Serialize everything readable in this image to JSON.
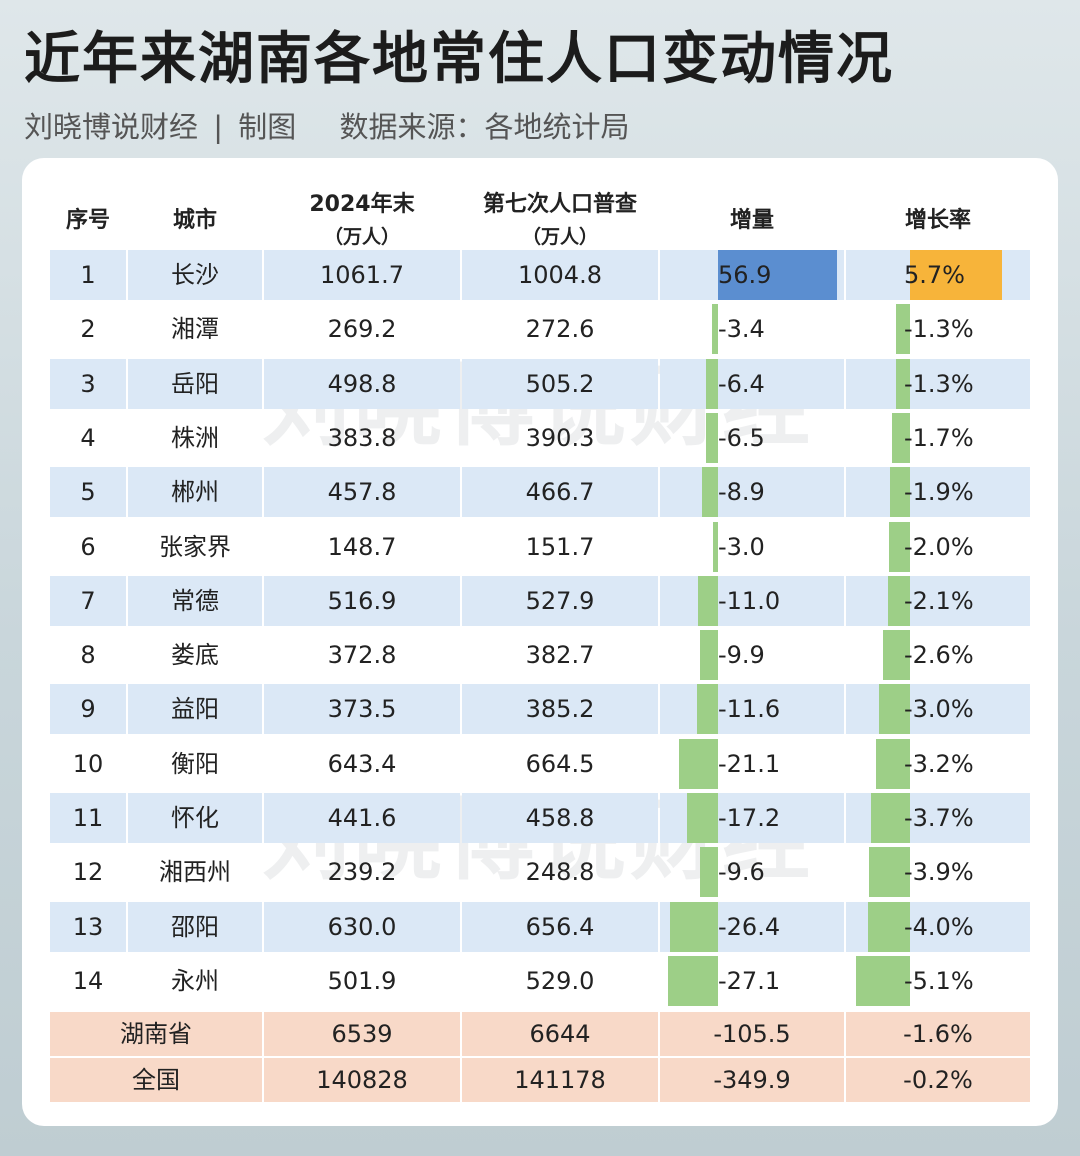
{
  "header": {
    "title": "近年来湖南各地常住人口变动情况",
    "author": "刘晓博说财经",
    "separator": "|",
    "made_by": "制图",
    "source": "数据来源：各地统计局"
  },
  "watermark": "刘晓博说财经",
  "colors": {
    "positive_increment": "#5b8ed0",
    "positive_rate": "#f7b43a",
    "negative": "#9dcf87",
    "row_blue": "#dbe8f6",
    "row_total": "#f8d9c8"
  },
  "chart_data": {
    "type": "table",
    "columns": [
      {
        "line1": "序号",
        "line2": ""
      },
      {
        "line1": "城市",
        "line2": ""
      },
      {
        "line1": "2024年末",
        "line2": "（万人）"
      },
      {
        "line1": "第七次人口普查",
        "line2": "（万人）"
      },
      {
        "line1": "增量",
        "line2": ""
      },
      {
        "line1": "增长率",
        "line2": ""
      }
    ],
    "rows": [
      {
        "no": "1",
        "city": "长沙",
        "pop2024": "1061.7",
        "census7": "1004.8",
        "increment": "56.9",
        "rate": "5.7%",
        "inc_value": 56.9,
        "rate_value": 5.7
      },
      {
        "no": "2",
        "city": "湘潭",
        "pop2024": "269.2",
        "census7": "272.6",
        "increment": "-3.4",
        "rate": "-1.3%",
        "inc_value": -3.4,
        "rate_value": -1.3
      },
      {
        "no": "3",
        "city": "岳阳",
        "pop2024": "498.8",
        "census7": "505.2",
        "increment": "-6.4",
        "rate": "-1.3%",
        "inc_value": -6.4,
        "rate_value": -1.3
      },
      {
        "no": "4",
        "city": "株洲",
        "pop2024": "383.8",
        "census7": "390.3",
        "increment": "-6.5",
        "rate": "-1.7%",
        "inc_value": -6.5,
        "rate_value": -1.7
      },
      {
        "no": "5",
        "city": "郴州",
        "pop2024": "457.8",
        "census7": "466.7",
        "increment": "-8.9",
        "rate": "-1.9%",
        "inc_value": -8.9,
        "rate_value": -1.9
      },
      {
        "no": "6",
        "city": "张家界",
        "pop2024": "148.7",
        "census7": "151.7",
        "increment": "-3.0",
        "rate": "-2.0%",
        "inc_value": -3.0,
        "rate_value": -2.0
      },
      {
        "no": "7",
        "city": "常德",
        "pop2024": "516.9",
        "census7": "527.9",
        "increment": "-11.0",
        "rate": "-2.1%",
        "inc_value": -11.0,
        "rate_value": -2.1
      },
      {
        "no": "8",
        "city": "娄底",
        "pop2024": "372.8",
        "census7": "382.7",
        "increment": "-9.9",
        "rate": "-2.6%",
        "inc_value": -9.9,
        "rate_value": -2.6
      },
      {
        "no": "9",
        "city": "益阳",
        "pop2024": "373.5",
        "census7": "385.2",
        "increment": "-11.6",
        "rate": "-3.0%",
        "inc_value": -11.6,
        "rate_value": -3.0
      },
      {
        "no": "10",
        "city": "衡阳",
        "pop2024": "643.4",
        "census7": "664.5",
        "increment": "-21.1",
        "rate": "-3.2%",
        "inc_value": -21.1,
        "rate_value": -3.2
      },
      {
        "no": "11",
        "city": "怀化",
        "pop2024": "441.6",
        "census7": "458.8",
        "increment": "-17.2",
        "rate": "-3.7%",
        "inc_value": -17.2,
        "rate_value": -3.7
      },
      {
        "no": "12",
        "city": "湘西州",
        "pop2024": "239.2",
        "census7": "248.8",
        "increment": "-9.6",
        "rate": "-3.9%",
        "inc_value": -9.6,
        "rate_value": -3.9
      },
      {
        "no": "13",
        "city": "邵阳",
        "pop2024": "630.0",
        "census7": "656.4",
        "increment": "-26.4",
        "rate": "-4.0%",
        "inc_value": -26.4,
        "rate_value": -4.0
      },
      {
        "no": "14",
        "city": "永州",
        "pop2024": "501.9",
        "census7": "529.0",
        "increment": "-27.1",
        "rate": "-5.1%",
        "inc_value": -27.1,
        "rate_value": -5.1
      }
    ],
    "totals": [
      {
        "name": "湖南省",
        "pop2024": "6539",
        "census7": "6644",
        "increment": "-105.5",
        "rate": "-1.6%"
      },
      {
        "name": "全国",
        "pop2024": "140828",
        "census7": "141178",
        "increment": "-349.9",
        "rate": "-0.2%"
      }
    ]
  }
}
